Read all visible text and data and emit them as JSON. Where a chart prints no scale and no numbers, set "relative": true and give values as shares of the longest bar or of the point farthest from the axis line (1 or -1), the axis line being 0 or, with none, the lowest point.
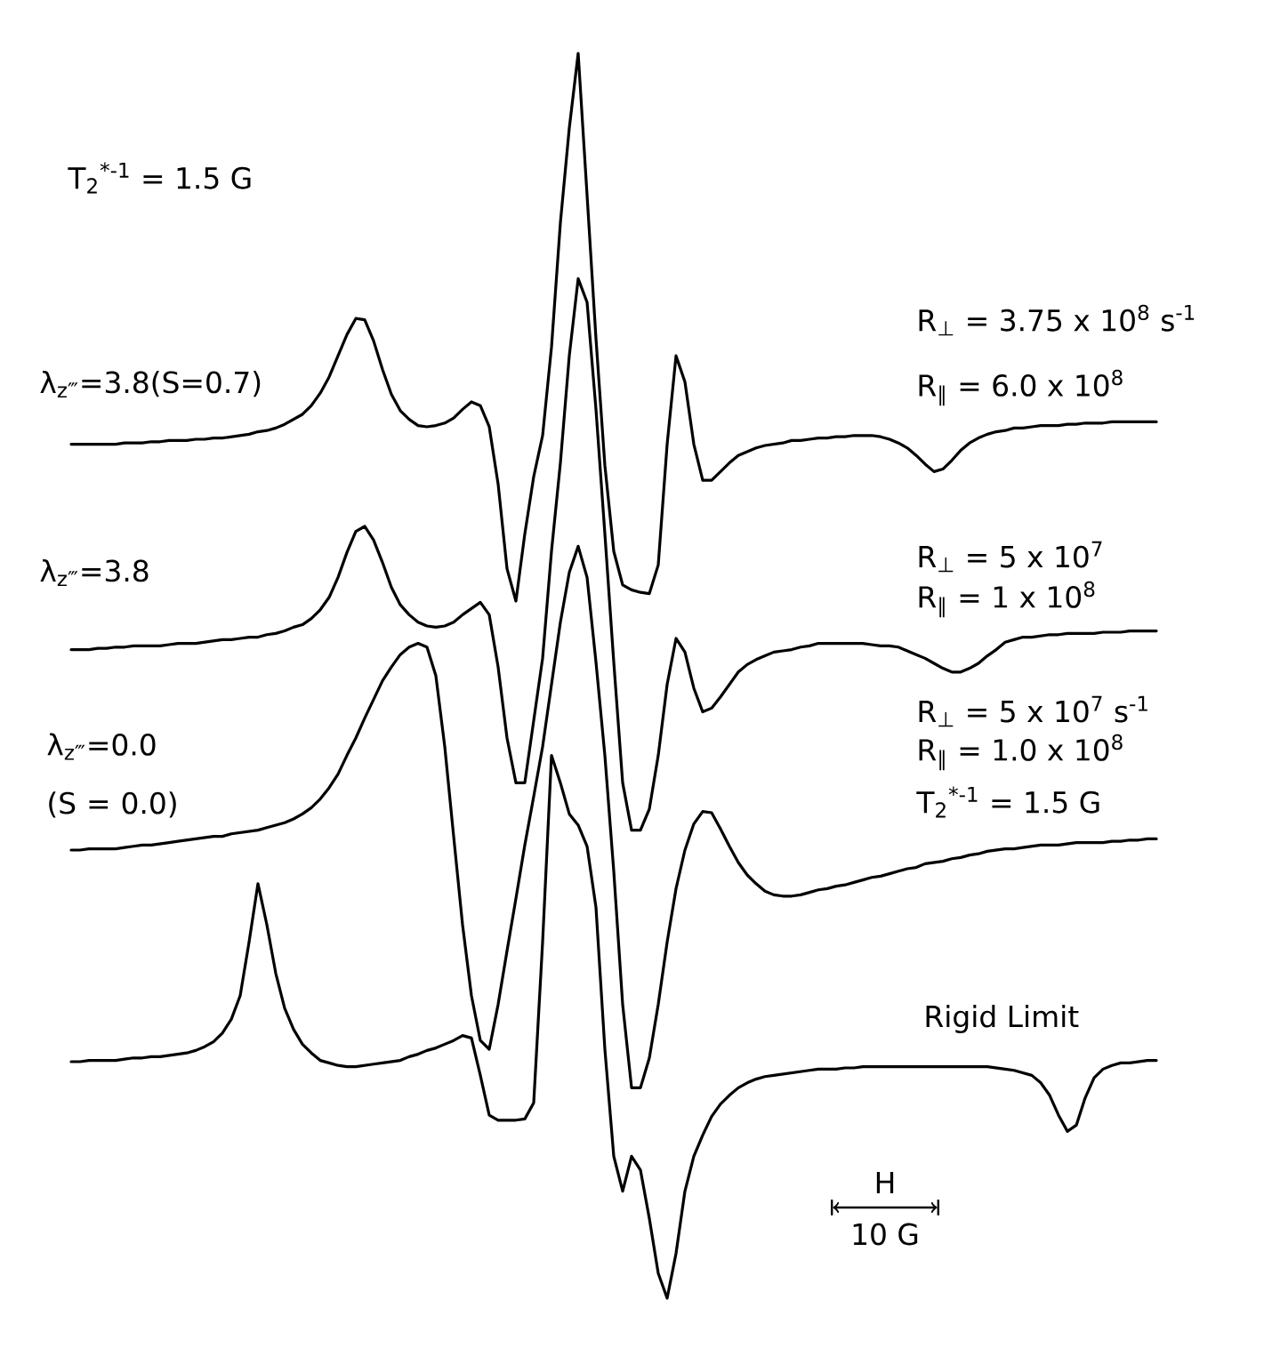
{
  "chart_data": {
    "type": "line",
    "title": "T$_{2}$$^{*-1}$ = 1.5 G",
    "relative": true,
    "categories": [
      null,
      null,
      null,
      null,
      null,
      null,
      null,
      null,
      null,
      null,
      null,
      null,
      null,
      null,
      null,
      null,
      null,
      null,
      null,
      null,
      null,
      null,
      null,
      null,
      null,
      null,
      null,
      null,
      null,
      null,
      null,
      null,
      null,
      null,
      null,
      null,
      null,
      null,
      null,
      null,
      null,
      null,
      null,
      null,
      null,
      null,
      null,
      null,
      null,
      null,
      null,
      null,
      null,
      null,
      null,
      null,
      null,
      null,
      null,
      null,
      null,
      null,
      null,
      null,
      null,
      null,
      null,
      null,
      null,
      null,
      null,
      null,
      null,
      null,
      null,
      null,
      null,
      null,
      null,
      null,
      null,
      null,
      null,
      null,
      null,
      null,
      null,
      null,
      null,
      null,
      null,
      null,
      null,
      null,
      null,
      null,
      null,
      null,
      null,
      null,
      null,
      null,
      null,
      null,
      null,
      null,
      null,
      null,
      null,
      null,
      null,
      null,
      null,
      null,
      null,
      null,
      null,
      null,
      null,
      null,
      null,
      null,
      null
    ],
    "series": [
      {
        "name": "λ$_{z‴}$=3.8(S=0.7)",
        "color": "#000000",
        "values": [
          0.686,
          0.686,
          0.686,
          0.686,
          0.686,
          0.686,
          0.687,
          0.687,
          0.687,
          0.688,
          0.688,
          0.689,
          0.689,
          0.689,
          0.69,
          0.69,
          0.691,
          0.691,
          0.692,
          0.693,
          0.694,
          0.696,
          0.697,
          0.699,
          0.702,
          0.706,
          0.71,
          0.717,
          0.727,
          0.74,
          0.757,
          0.774,
          0.787,
          0.786,
          0.769,
          0.746,
          0.726,
          0.713,
          0.706,
          0.701,
          0.7,
          0.701,
          0.703,
          0.707,
          0.714,
          0.72,
          0.717,
          0.7,
          0.654,
          0.586,
          0.56,
          0.614,
          0.66,
          0.693,
          0.764,
          0.864,
          0.94,
          1.0,
          0.886,
          0.771,
          0.669,
          0.6,
          0.573,
          0.569,
          0.567,
          0.566,
          0.589,
          0.686,
          0.757,
          0.736,
          0.686,
          0.657,
          0.657,
          0.664,
          0.671,
          0.677,
          0.68,
          0.683,
          0.685,
          0.686,
          0.687,
          0.689,
          0.689,
          0.69,
          0.691,
          0.691,
          0.692,
          0.692,
          0.693,
          0.693,
          0.693,
          0.692,
          0.69,
          0.687,
          0.683,
          0.677,
          0.67,
          0.664,
          0.666,
          0.673,
          0.681,
          0.687,
          0.691,
          0.694,
          0.696,
          0.697,
          0.699,
          0.699,
          0.7,
          0.701,
          0.701,
          0.701,
          0.702,
          0.702,
          0.703,
          0.703,
          0.703,
          0.704,
          0.704,
          0.704,
          0.704,
          0.704,
          0.704
        ]
      },
      {
        "name": "λ$_{z‴}$=3.8",
        "color": "#000000",
        "values": [
          0.521,
          0.521,
          0.521,
          0.522,
          0.522,
          0.523,
          0.523,
          0.524,
          0.524,
          0.524,
          0.524,
          0.525,
          0.526,
          0.526,
          0.526,
          0.527,
          0.528,
          0.529,
          0.529,
          0.53,
          0.531,
          0.531,
          0.533,
          0.534,
          0.536,
          0.539,
          0.541,
          0.546,
          0.553,
          0.563,
          0.579,
          0.599,
          0.616,
          0.62,
          0.609,
          0.591,
          0.571,
          0.557,
          0.549,
          0.543,
          0.54,
          0.539,
          0.54,
          0.543,
          0.549,
          0.554,
          0.559,
          0.549,
          0.507,
          0.45,
          0.414,
          0.414,
          0.464,
          0.514,
          0.6,
          0.671,
          0.757,
          0.819,
          0.8,
          0.714,
          0.614,
          0.511,
          0.414,
          0.376,
          0.376,
          0.393,
          0.436,
          0.493,
          0.53,
          0.519,
          0.49,
          0.471,
          0.474,
          0.483,
          0.493,
          0.503,
          0.509,
          0.513,
          0.516,
          0.519,
          0.52,
          0.521,
          0.523,
          0.524,
          0.526,
          0.526,
          0.526,
          0.526,
          0.526,
          0.526,
          0.525,
          0.524,
          0.524,
          0.523,
          0.52,
          0.517,
          0.514,
          0.51,
          0.506,
          0.503,
          0.503,
          0.506,
          0.51,
          0.516,
          0.521,
          0.527,
          0.529,
          0.531,
          0.531,
          0.532,
          0.533,
          0.533,
          0.534,
          0.534,
          0.534,
          0.534,
          0.535,
          0.535,
          0.535,
          0.536,
          0.536,
          0.536,
          0.536
        ]
      },
      {
        "name": "λ$_{z‴}$=0.0 (S = 0.0)",
        "color": "#000000",
        "values": [
          0.36,
          0.36,
          0.361,
          0.361,
          0.361,
          0.361,
          0.362,
          0.363,
          0.364,
          0.364,
          0.365,
          0.366,
          0.367,
          0.368,
          0.369,
          0.37,
          0.371,
          0.371,
          0.373,
          0.374,
          0.375,
          0.376,
          0.378,
          0.38,
          0.382,
          0.385,
          0.389,
          0.394,
          0.401,
          0.41,
          0.421,
          0.436,
          0.45,
          0.466,
          0.481,
          0.496,
          0.507,
          0.517,
          0.523,
          0.526,
          0.523,
          0.5,
          0.443,
          0.371,
          0.3,
          0.243,
          0.207,
          0.2,
          0.236,
          0.279,
          0.321,
          0.364,
          0.403,
          0.443,
          0.493,
          0.543,
          0.583,
          0.604,
          0.579,
          0.511,
          0.436,
          0.343,
          0.236,
          0.169,
          0.169,
          0.193,
          0.236,
          0.286,
          0.329,
          0.36,
          0.381,
          0.391,
          0.39,
          0.377,
          0.363,
          0.35,
          0.34,
          0.333,
          0.327,
          0.324,
          0.323,
          0.323,
          0.324,
          0.326,
          0.328,
          0.329,
          0.331,
          0.332,
          0.334,
          0.336,
          0.338,
          0.339,
          0.341,
          0.343,
          0.345,
          0.346,
          0.349,
          0.35,
          0.351,
          0.353,
          0.354,
          0.356,
          0.357,
          0.359,
          0.36,
          0.361,
          0.361,
          0.362,
          0.363,
          0.364,
          0.364,
          0.364,
          0.365,
          0.366,
          0.366,
          0.366,
          0.366,
          0.367,
          0.367,
          0.368,
          0.368,
          0.369,
          0.369
        ]
      },
      {
        "name": "Rigid Limit",
        "color": "#000000",
        "values": [
          0.19,
          0.19,
          0.191,
          0.191,
          0.191,
          0.191,
          0.192,
          0.193,
          0.193,
          0.194,
          0.194,
          0.195,
          0.196,
          0.197,
          0.199,
          0.202,
          0.206,
          0.213,
          0.224,
          0.243,
          0.286,
          0.333,
          0.3,
          0.261,
          0.233,
          0.216,
          0.204,
          0.197,
          0.191,
          0.189,
          0.187,
          0.186,
          0.186,
          0.187,
          0.188,
          0.189,
          0.19,
          0.191,
          0.194,
          0.196,
          0.199,
          0.201,
          0.204,
          0.207,
          0.211,
          0.209,
          0.179,
          0.147,
          0.143,
          0.143,
          0.143,
          0.144,
          0.157,
          0.286,
          0.436,
          0.414,
          0.389,
          0.38,
          0.363,
          0.314,
          0.2,
          0.114,
          0.086,
          0.114,
          0.103,
          0.064,
          0.02,
          0.0,
          0.036,
          0.086,
          0.114,
          0.131,
          0.146,
          0.156,
          0.163,
          0.169,
          0.173,
          0.176,
          0.178,
          0.179,
          0.18,
          0.181,
          0.182,
          0.183,
          0.184,
          0.184,
          0.184,
          0.185,
          0.185,
          0.186,
          0.186,
          0.186,
          0.186,
          0.186,
          0.186,
          0.186,
          0.186,
          0.186,
          0.186,
          0.186,
          0.186,
          0.186,
          0.186,
          0.186,
          0.185,
          0.184,
          0.183,
          0.181,
          0.179,
          0.173,
          0.163,
          0.147,
          0.134,
          0.139,
          0.161,
          0.177,
          0.184,
          0.187,
          0.189,
          0.189,
          0.19,
          0.191,
          0.191
        ]
      }
    ],
    "annotations": [
      "R$_{⊥}$ = 3.75 x 10$^{8}$ s$^{-1}$",
      "R$_{∥}$ = 6.0 x 10$^{8}$",
      "R$_{⊥}$ = 5 x 10$^{7}$",
      "R$_{∥}$ = 1 x 10$^{8}$",
      "R$_{⊥}$ = 5 x 10$^{7}$ s$^{-1}$",
      "R$_{∥}$ = 1.0 x 10$^{8}$",
      "T$_{2}$$^{*-1}$ = 1.5 G",
      "H",
      "10 G"
    ]
  }
}
